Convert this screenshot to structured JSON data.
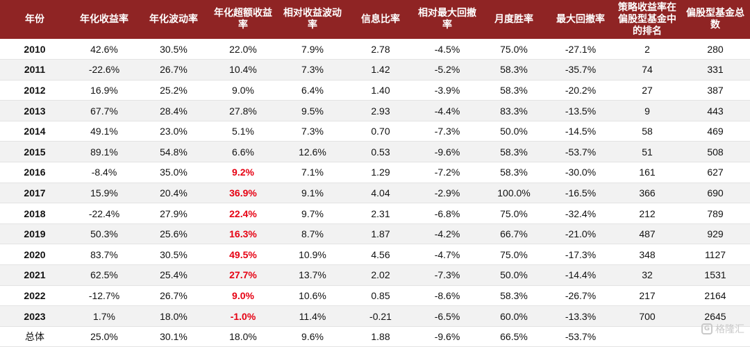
{
  "table": {
    "headers": [
      "年份",
      "年化收益率",
      "年化波动率",
      "年化超额收益率",
      "相对收益波动率",
      "信息比率",
      "相对最大回撤率",
      "月度胜率",
      "最大回撤率",
      "策略收益率在偏股型基金中的排名",
      "偏股型基金总数"
    ],
    "rows": [
      [
        "2010",
        "42.6%",
        "30.5%",
        "22.0%",
        "7.9%",
        "2.78",
        "-4.5%",
        "75.0%",
        "-27.1%",
        "2",
        "280"
      ],
      [
        "2011",
        "-22.6%",
        "26.7%",
        "10.4%",
        "7.3%",
        "1.42",
        "-5.2%",
        "58.3%",
        "-35.7%",
        "74",
        "331"
      ],
      [
        "2012",
        "16.9%",
        "25.2%",
        "9.0%",
        "6.4%",
        "1.40",
        "-3.9%",
        "58.3%",
        "-20.2%",
        "27",
        "387"
      ],
      [
        "2013",
        "67.7%",
        "28.4%",
        "27.8%",
        "9.5%",
        "2.93",
        "-4.4%",
        "83.3%",
        "-13.5%",
        "9",
        "443"
      ],
      [
        "2014",
        "49.1%",
        "23.0%",
        "5.1%",
        "7.3%",
        "0.70",
        "-7.3%",
        "50.0%",
        "-14.5%",
        "58",
        "469"
      ],
      [
        "2015",
        "89.1%",
        "54.8%",
        "6.6%",
        "12.6%",
        "0.53",
        "-9.6%",
        "58.3%",
        "-53.7%",
        "51",
        "508"
      ],
      [
        "2016",
        "-8.4%",
        "35.0%",
        "9.2%",
        "7.1%",
        "1.29",
        "-7.2%",
        "58.3%",
        "-30.0%",
        "161",
        "627"
      ],
      [
        "2017",
        "15.9%",
        "20.4%",
        "36.9%",
        "9.1%",
        "4.04",
        "-2.9%",
        "100.0%",
        "-16.5%",
        "366",
        "690"
      ],
      [
        "2018",
        "-22.4%",
        "27.9%",
        "22.4%",
        "9.7%",
        "2.31",
        "-6.8%",
        "75.0%",
        "-32.4%",
        "212",
        "789"
      ],
      [
        "2019",
        "50.3%",
        "25.6%",
        "16.3%",
        "8.7%",
        "1.87",
        "-4.2%",
        "66.7%",
        "-21.0%",
        "487",
        "929"
      ],
      [
        "2020",
        "83.7%",
        "30.5%",
        "49.5%",
        "10.9%",
        "4.56",
        "-4.7%",
        "75.0%",
        "-17.3%",
        "348",
        "1127"
      ],
      [
        "2021",
        "62.5%",
        "25.4%",
        "27.7%",
        "13.7%",
        "2.02",
        "-7.3%",
        "50.0%",
        "-14.4%",
        "32",
        "1531"
      ],
      [
        "2022",
        "-12.7%",
        "26.7%",
        "9.0%",
        "10.6%",
        "0.85",
        "-8.6%",
        "58.3%",
        "-26.7%",
        "217",
        "2164"
      ],
      [
        "2023",
        "1.7%",
        "18.0%",
        "-1.0%",
        "11.4%",
        "-0.21",
        "-6.5%",
        "60.0%",
        "-13.3%",
        "700",
        "2645"
      ],
      [
        "总体",
        "25.0%",
        "30.1%",
        "18.0%",
        "9.6%",
        "1.88",
        "-9.6%",
        "66.5%",
        "-53.7%",
        "",
        ""
      ]
    ],
    "highlighted_rows_col3": [
      6,
      7,
      8,
      9,
      10,
      11,
      12,
      13
    ],
    "header_bg": "#8f2424",
    "highlight_color": "#e60012"
  },
  "watermark": {
    "icon": "gelonghui-logo-icon",
    "text": "格隆汇"
  }
}
